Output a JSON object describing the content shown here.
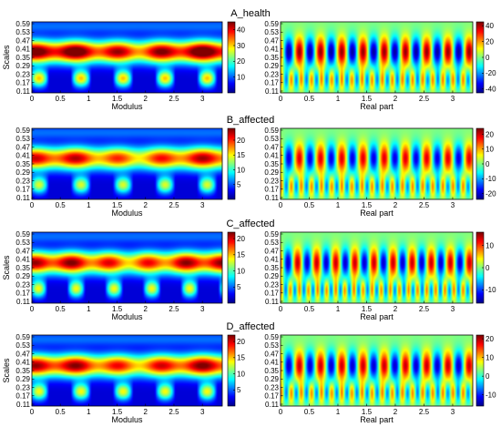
{
  "colors": {
    "jet": [
      "#00008f",
      "#0000ff",
      "#0080ff",
      "#00ffff",
      "#80ff80",
      "#ffff00",
      "#ff8000",
      "#ff0000",
      "#800000"
    ],
    "axis": "#000000"
  },
  "chart_data": [
    {
      "type": "heatmap",
      "title": "A_health",
      "ylabel": "Scales",
      "modulus": {
        "xlabel": "Modulus",
        "colorbar_ticks": [
          "40",
          "30",
          "20",
          "10"
        ],
        "clim": [
          0,
          45
        ]
      },
      "real": {
        "xlabel": "Real part",
        "colorbar_ticks": [
          "40",
          "20",
          "0",
          "-20",
          "-40"
        ],
        "clim": [
          -45,
          45
        ]
      },
      "xticks": [
        "0",
        "0.5",
        "1",
        "1.5",
        "2",
        "2.5",
        "3"
      ],
      "xlim": [
        0,
        3.35
      ],
      "yticks": [
        "0.59",
        "0.53",
        "0.47",
        "0.41",
        "0.35",
        "0.29",
        "0.23",
        "0.17",
        "0.11"
      ],
      "ylim": [
        0.11,
        0.61
      ],
      "pattern": {
        "band_scale": 0.42,
        "bumps": 9,
        "intensity": 1.0
      }
    },
    {
      "type": "heatmap",
      "title": "B_affected",
      "ylabel": "",
      "modulus": {
        "xlabel": "Modulus",
        "colorbar_ticks": [
          "20",
          "15",
          "10",
          "5"
        ],
        "clim": [
          0,
          24
        ]
      },
      "real": {
        "xlabel": "Real part",
        "colorbar_ticks": [
          "20",
          "10",
          "0",
          "-10",
          "-20"
        ],
        "clim": [
          -24,
          24
        ]
      },
      "xticks": [
        "0",
        "0.5",
        "1",
        "1.5",
        "2",
        "2.5",
        "3"
      ],
      "xlim": [
        0,
        3.35
      ],
      "yticks": [
        "0.59",
        "0.53",
        "0.47",
        "0.41",
        "0.35",
        "0.29",
        "0.23",
        "0.17",
        "0.11"
      ],
      "ylim": [
        0.11,
        0.61
      ],
      "pattern": {
        "band_scale": 0.42,
        "bumps": 9,
        "intensity": 0.85
      }
    },
    {
      "type": "heatmap",
      "title": "C_affected",
      "ylabel": "Scales",
      "modulus": {
        "xlabel": "Modulus",
        "colorbar_ticks": [
          "20",
          "15",
          "10",
          "5"
        ],
        "clim": [
          0,
          22
        ]
      },
      "real": {
        "xlabel": "Real part",
        "colorbar_ticks": [
          "10",
          "0",
          "-10"
        ],
        "clim": [
          -16,
          16
        ]
      },
      "xticks": [
        "0",
        "0.5",
        "1",
        "1.5",
        "2",
        "2.5",
        "3"
      ],
      "xlim": [
        0,
        3.35
      ],
      "yticks": [
        "0.59",
        "0.53",
        "0.47",
        "0.41",
        "0.35",
        "0.29",
        "0.23",
        "0.17",
        "0.11"
      ],
      "ylim": [
        0.11,
        0.61
      ],
      "pattern": {
        "band_scale": 0.43,
        "bumps": 10,
        "intensity": 0.9
      }
    },
    {
      "type": "heatmap",
      "title": "D_affected",
      "ylabel": "Scales",
      "modulus": {
        "xlabel": "Modulus",
        "colorbar_ticks": [
          "20",
          "15",
          "10",
          "5"
        ],
        "clim": [
          0,
          22
        ]
      },
      "real": {
        "xlabel": "Real part",
        "colorbar_ticks": [
          "20",
          "10",
          "0",
          "-10"
        ],
        "clim": [
          -16,
          22
        ]
      },
      "xticks": [
        "0",
        "0.5",
        "1",
        "1.5",
        "2",
        "2.5",
        "3"
      ],
      "xlim": [
        0,
        3.35
      ],
      "yticks": [
        "0.59",
        "0.53",
        "0.47",
        "0.41",
        "0.35",
        "0.29",
        "0.23",
        "0.17",
        "0.11"
      ],
      "ylim": [
        0.11,
        0.61
      ],
      "pattern": {
        "band_scale": 0.43,
        "bumps": 9,
        "intensity": 0.9
      }
    }
  ]
}
